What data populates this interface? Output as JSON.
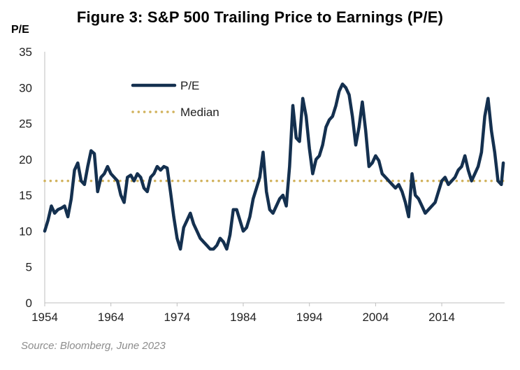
{
  "chart_data": {
    "type": "line",
    "title": "Figure 3: S&P 500 Trailing Price to Earnings (P/E)",
    "ylabel": "P/E",
    "xlabel": "",
    "ylim": [
      0,
      35
    ],
    "xlim": [
      1954,
      2023.5
    ],
    "yticks": [
      "0",
      "5",
      "10",
      "15",
      "20",
      "25",
      "30",
      "35"
    ],
    "xticks": [
      "1954",
      "1964",
      "1974",
      "1984",
      "1994",
      "2004",
      "2014"
    ],
    "grid": false,
    "legend_position": "top-left inside plot",
    "series": [
      {
        "name": "P/E",
        "color": "#14304f",
        "x": [
          1954.0,
          1954.5,
          1955.0,
          1955.5,
          1956.0,
          1956.5,
          1957.0,
          1957.5,
          1958.0,
          1958.5,
          1959.0,
          1959.5,
          1960.0,
          1960.5,
          1961.0,
          1961.5,
          1962.0,
          1962.5,
          1963.0,
          1963.5,
          1964.0,
          1964.5,
          1965.0,
          1965.5,
          1966.0,
          1966.5,
          1967.0,
          1967.5,
          1968.0,
          1968.5,
          1969.0,
          1969.5,
          1970.0,
          1970.5,
          1971.0,
          1971.5,
          1972.0,
          1972.5,
          1973.0,
          1973.5,
          1974.0,
          1974.5,
          1975.0,
          1975.5,
          1976.0,
          1976.5,
          1977.0,
          1977.5,
          1978.0,
          1978.5,
          1979.0,
          1979.5,
          1980.0,
          1980.5,
          1981.0,
          1981.5,
          1982.0,
          1982.5,
          1983.0,
          1983.5,
          1984.0,
          1984.5,
          1985.0,
          1985.5,
          1986.0,
          1986.5,
          1987.0,
          1987.5,
          1988.0,
          1988.5,
          1989.0,
          1989.5,
          1990.0,
          1990.5,
          1991.0,
          1991.5,
          1992.0,
          1992.5,
          1993.0,
          1993.5,
          1994.0,
          1994.5,
          1995.0,
          1995.5,
          1996.0,
          1996.5,
          1997.0,
          1997.5,
          1998.0,
          1998.5,
          1999.0,
          1999.5,
          2000.0,
          2000.5,
          2001.0,
          2001.5,
          2002.0,
          2002.5,
          2003.0,
          2003.5,
          2004.0,
          2004.5,
          2005.0,
          2005.5,
          2006.0,
          2006.5,
          2007.0,
          2007.5,
          2008.0,
          2008.5,
          2009.0,
          2009.5,
          2010.0,
          2010.5,
          2011.0,
          2011.5,
          2012.0,
          2012.5,
          2013.0,
          2013.5,
          2014.0,
          2014.5,
          2015.0,
          2015.5,
          2016.0,
          2016.5,
          2017.0,
          2017.5,
          2018.0,
          2018.5,
          2019.0,
          2019.5,
          2020.0,
          2020.5,
          2021.0,
          2021.5,
          2022.0,
          2022.5,
          2023.0,
          2023.3
        ],
        "values": [
          10.0,
          11.5,
          13.5,
          12.5,
          13.0,
          13.2,
          13.5,
          12.0,
          14.5,
          18.5,
          19.5,
          17.0,
          16.5,
          19.0,
          21.2,
          20.8,
          15.5,
          17.5,
          18.0,
          19.0,
          18.0,
          17.5,
          17.0,
          15.0,
          14.0,
          17.5,
          17.8,
          17.0,
          18.0,
          17.5,
          16.0,
          15.5,
          17.5,
          18.0,
          19.0,
          18.5,
          19.0,
          18.8,
          15.5,
          12.0,
          9.0,
          7.5,
          10.5,
          11.5,
          12.5,
          11.0,
          10.0,
          9.0,
          8.5,
          8.0,
          7.5,
          7.5,
          8.0,
          9.0,
          8.5,
          7.5,
          9.5,
          13.0,
          13.0,
          11.5,
          10.0,
          10.5,
          12.0,
          14.5,
          16.0,
          17.5,
          21.0,
          15.5,
          13.0,
          12.5,
          13.5,
          14.5,
          15.0,
          13.5,
          19.0,
          27.5,
          23.0,
          22.5,
          28.5,
          26.0,
          21.5,
          18.0,
          20.0,
          20.5,
          22.0,
          24.5,
          25.5,
          26.0,
          27.5,
          29.5,
          30.5,
          30.0,
          29.0,
          26.0,
          22.0,
          24.5,
          28.0,
          24.0,
          19.0,
          19.5,
          20.5,
          19.8,
          18.0,
          17.5,
          17.0,
          16.5,
          16.0,
          16.5,
          15.5,
          14.0,
          12.0,
          18.0,
          15.0,
          14.5,
          13.5,
          12.5,
          13.0,
          13.5,
          14.0,
          15.5,
          17.0,
          17.5,
          16.5,
          17.0,
          17.5,
          18.5,
          19.0,
          20.5,
          18.5,
          17.0,
          18.0,
          19.0,
          21.0,
          26.0,
          28.5,
          24.0,
          21.0,
          17.0,
          16.5,
          19.5
        ],
        "line_width": 4.5
      },
      {
        "name": "Median",
        "color": "#d1b25c",
        "type": "horizontal-dotted",
        "value": 17.0
      }
    ]
  },
  "legend": {
    "items": [
      {
        "label": "P/E",
        "color": "#14304f",
        "style": "solid"
      },
      {
        "label": "Median",
        "color": "#d1b25c",
        "style": "dotted"
      }
    ]
  },
  "source": "Source: Bloomberg, June 2023"
}
